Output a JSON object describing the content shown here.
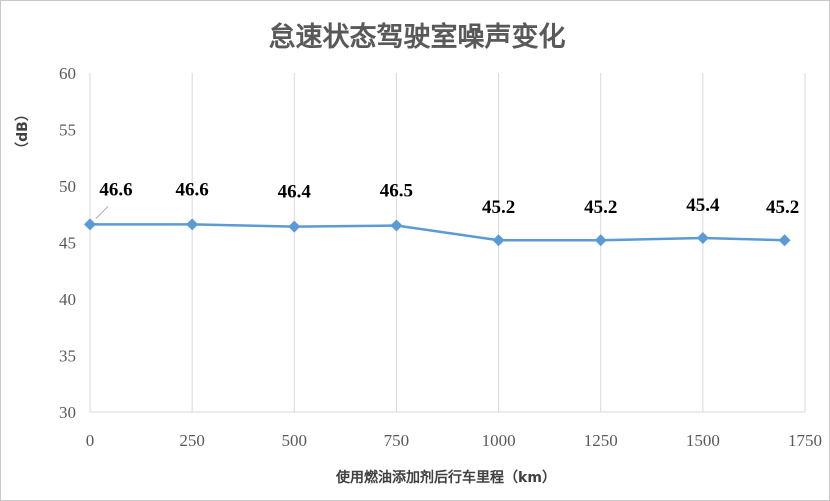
{
  "chart_data": {
    "type": "line",
    "title": "怠速状态驾驶室噪声变化",
    "xlabel": "使用燃油添加剂后行车里程（km）",
    "ylabel": "（dB）",
    "x": [
      0,
      250,
      500,
      750,
      1000,
      1250,
      1500,
      1700
    ],
    "series": [
      {
        "values": [
          46.6,
          46.6,
          46.4,
          46.5,
          45.2,
          45.2,
          45.4,
          45.2
        ]
      }
    ],
    "data_labels": [
      "46.6",
      "46.6",
      "46.4",
      "46.5",
      "45.2",
      "45.2",
      "45.4",
      "45.2"
    ],
    "xlim": [
      0,
      1750
    ],
    "ylim": [
      30,
      60
    ],
    "x_ticks": [
      "0",
      "250",
      "500",
      "750",
      "1000",
      "1250",
      "1500",
      "1750"
    ],
    "y_ticks": [
      "30",
      "35",
      "40",
      "45",
      "50",
      "55",
      "60"
    ],
    "grid": "vertical",
    "legend": "none",
    "colors": {
      "series": "#5b9bd5",
      "grid": "#d9d9d9",
      "text": "#595959"
    }
  }
}
